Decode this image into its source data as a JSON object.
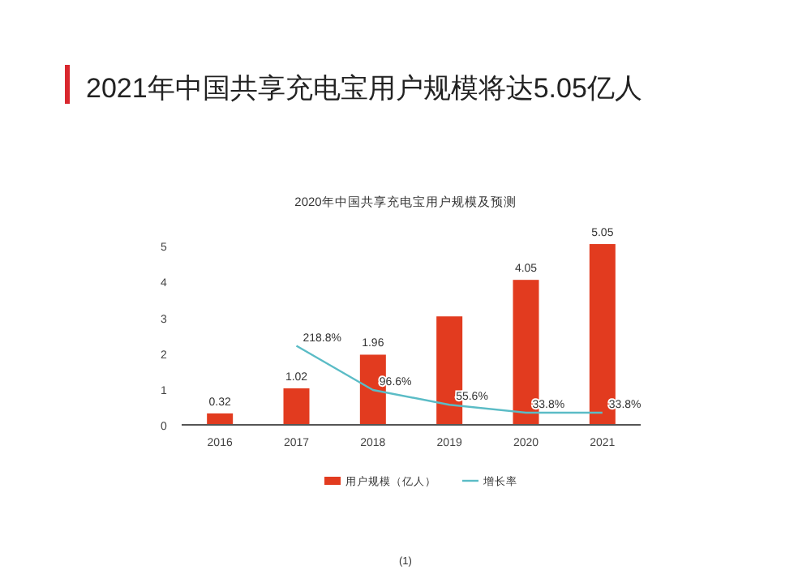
{
  "chart_data": {
    "type": "bar",
    "title": "2021年中国共享充电宝用户规模将达5.05亿人",
    "subtitle": "2020年中国共享充电宝用户规模及预测",
    "categories": [
      "2016",
      "2017",
      "2018",
      "2019",
      "2020",
      "2021"
    ],
    "series": [
      {
        "name": "用户规模（亿人）",
        "color": "#e23b1f",
        "values": [
          0.32,
          1.02,
          1.96,
          3.03,
          4.05,
          5.05
        ],
        "value_labels": [
          "0.32",
          "1.02",
          "1.96",
          null,
          "4.05",
          "5.05"
        ]
      },
      {
        "name": "增长率",
        "type": "line",
        "axis": "y2",
        "color": "#5bbcc6",
        "values": [
          null,
          218.8,
          96.6,
          55.6,
          33.8,
          33.8
        ],
        "value_labels": [
          null,
          "218.8%",
          "96.6%",
          "55.6%",
          "33.8%",
          "33.8%"
        ]
      }
    ],
    "ylim": [
      0,
      5.3
    ],
    "yticks": [
      0,
      1,
      2,
      3,
      4,
      5
    ],
    "legend": "bottom",
    "grid": false,
    "annotations": [
      "(1)"
    ]
  }
}
